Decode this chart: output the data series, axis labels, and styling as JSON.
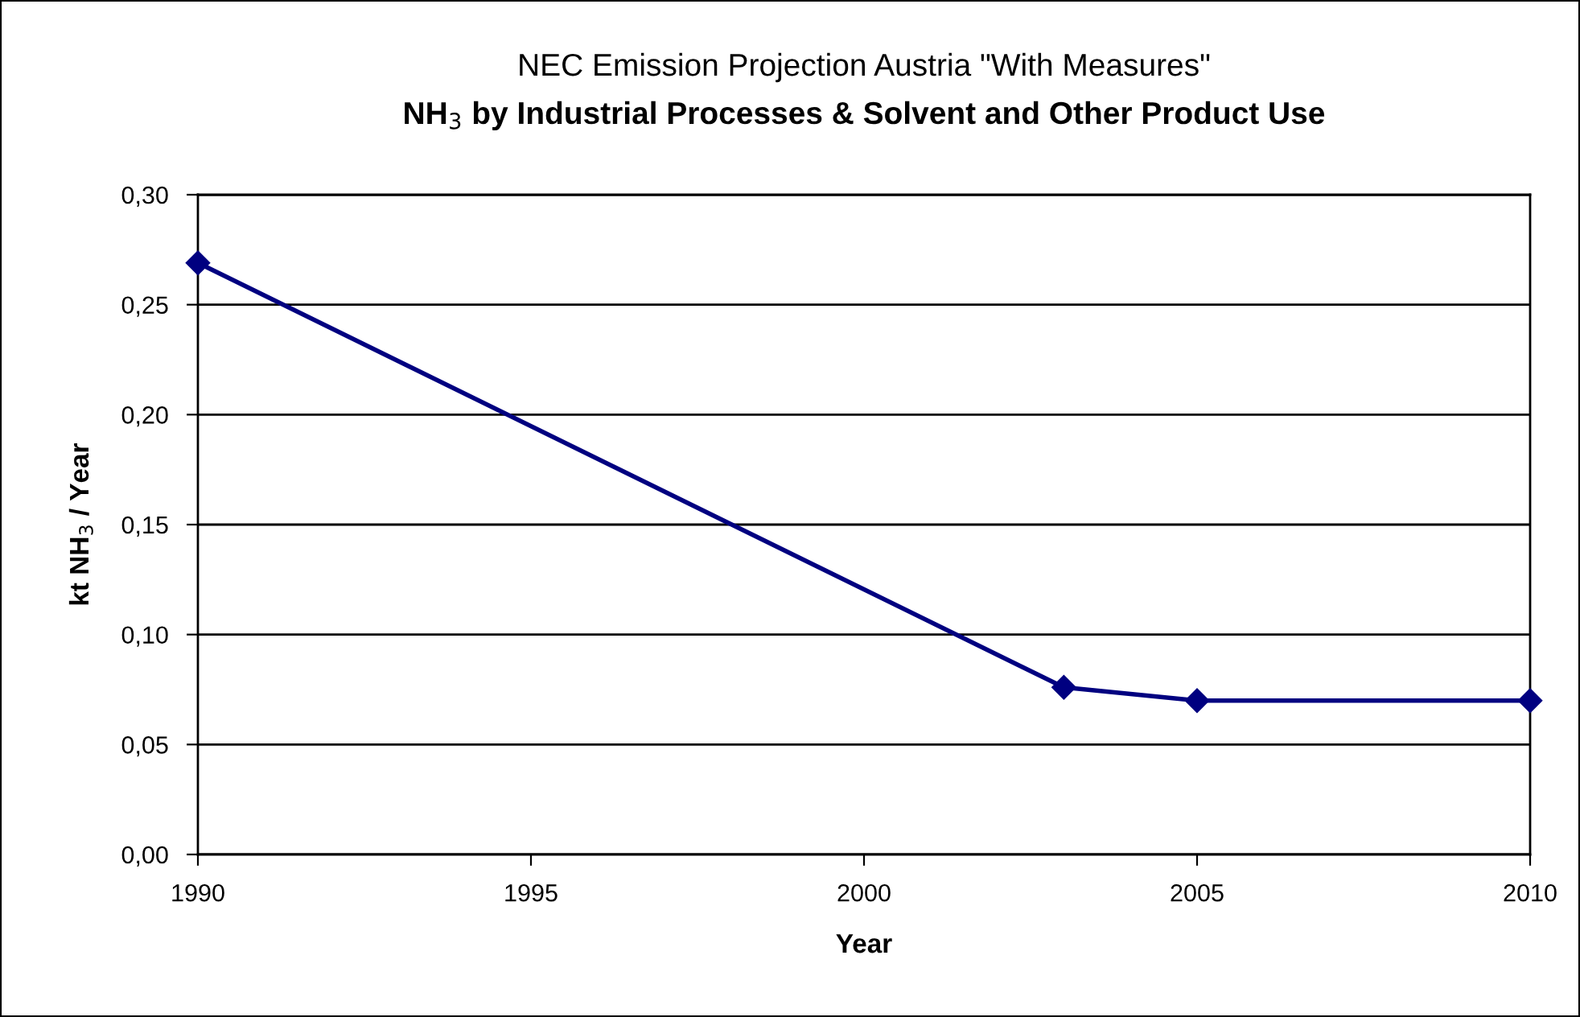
{
  "chart_data": {
    "type": "line",
    "title": "NEC Emission Projection Austria \"With Measures\"",
    "subtitle": "NH$_{3}$ by Industrial Processes & Solvent and Other Product Use",
    "xlabel": "Year",
    "ylabel": "kt NH$_{3}$ / Year",
    "x": [
      1990,
      2003,
      2005,
      2010
    ],
    "series": [
      {
        "color": "#000080",
        "values": [
          0.269,
          0.076,
          0.07,
          0.07
        ]
      }
    ],
    "xlim": [
      1990,
      2010
    ],
    "xticks": [
      1990,
      1995,
      2000,
      2005,
      2010
    ],
    "ylim": [
      0,
      0.3
    ],
    "yticks": [
      {
        "value": 0,
        "label": "0,00"
      },
      {
        "value": 0.05,
        "label": "0,05"
      },
      {
        "value": 0.1,
        "label": "0,10"
      },
      {
        "value": 0.15,
        "label": "0,15"
      },
      {
        "value": 0.2,
        "label": "0,20"
      },
      {
        "value": 0.25,
        "label": "0,25"
      },
      {
        "value": 0.3,
        "label": "0,30"
      }
    ],
    "grid": "y",
    "marker": "diamond",
    "line_style": "solid",
    "legend": false
  }
}
